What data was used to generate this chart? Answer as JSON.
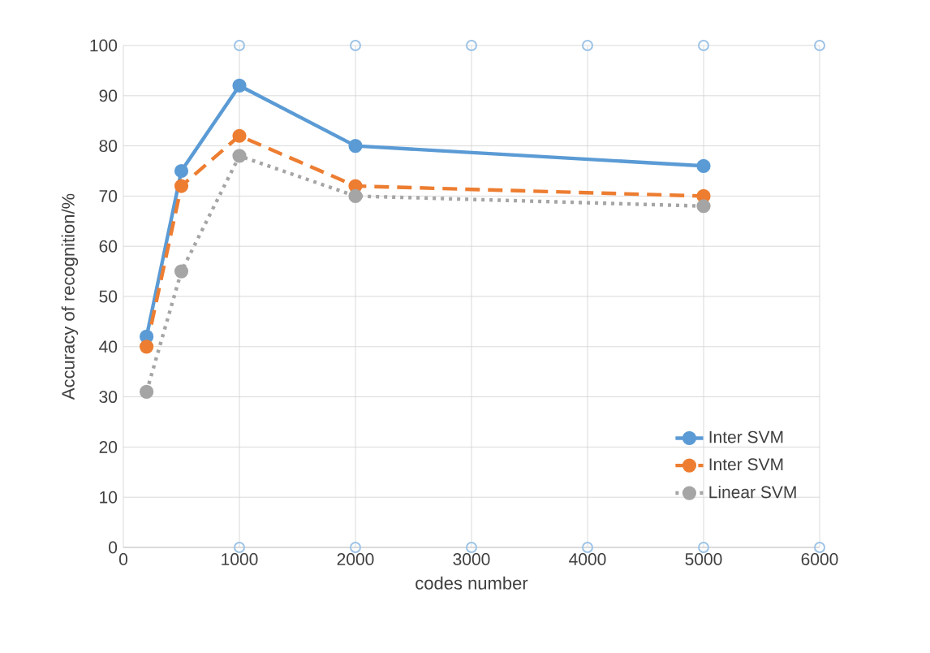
{
  "chart_data": {
    "type": "line",
    "xlabel": "codes number",
    "ylabel": "Accuracy of recognition/%",
    "xlim": [
      0,
      6000
    ],
    "xticks": [
      0,
      1000,
      2000,
      3000,
      4000,
      5000,
      6000
    ],
    "ylim": [
      0,
      100
    ],
    "yticks": [
      0,
      10,
      20,
      30,
      40,
      50,
      60,
      70,
      80,
      90,
      100
    ],
    "grid": true,
    "legend": "bottom right",
    "marker": "circle",
    "x": [
      200,
      500,
      1000,
      2000,
      5000
    ],
    "series": [
      {
        "name": "Inter SVM",
        "color": "#5b9bd5",
        "line_style": "solid",
        "values": [
          42,
          75,
          92,
          80,
          76
        ]
      },
      {
        "name": "Inter SVM",
        "color": "#ed7d31",
        "line_style": "dashed",
        "values": [
          40,
          72,
          82,
          72,
          70
        ]
      },
      {
        "name": "Linear SVM",
        "color": "#a5a5a5",
        "line_style": "dotted",
        "values": [
          31,
          55,
          78,
          70,
          68
        ]
      },
      {
        "type": "scatter",
        "color": "#9dc3e6",
        "x": [
          1000,
          2000,
          3000,
          4000,
          5000,
          6000,
          1000,
          2000,
          3000,
          4000,
          5000,
          6000
        ],
        "values": [
          100,
          100,
          100,
          100,
          100,
          100,
          0,
          0,
          0,
          0,
          0,
          0
        ]
      }
    ]
  }
}
